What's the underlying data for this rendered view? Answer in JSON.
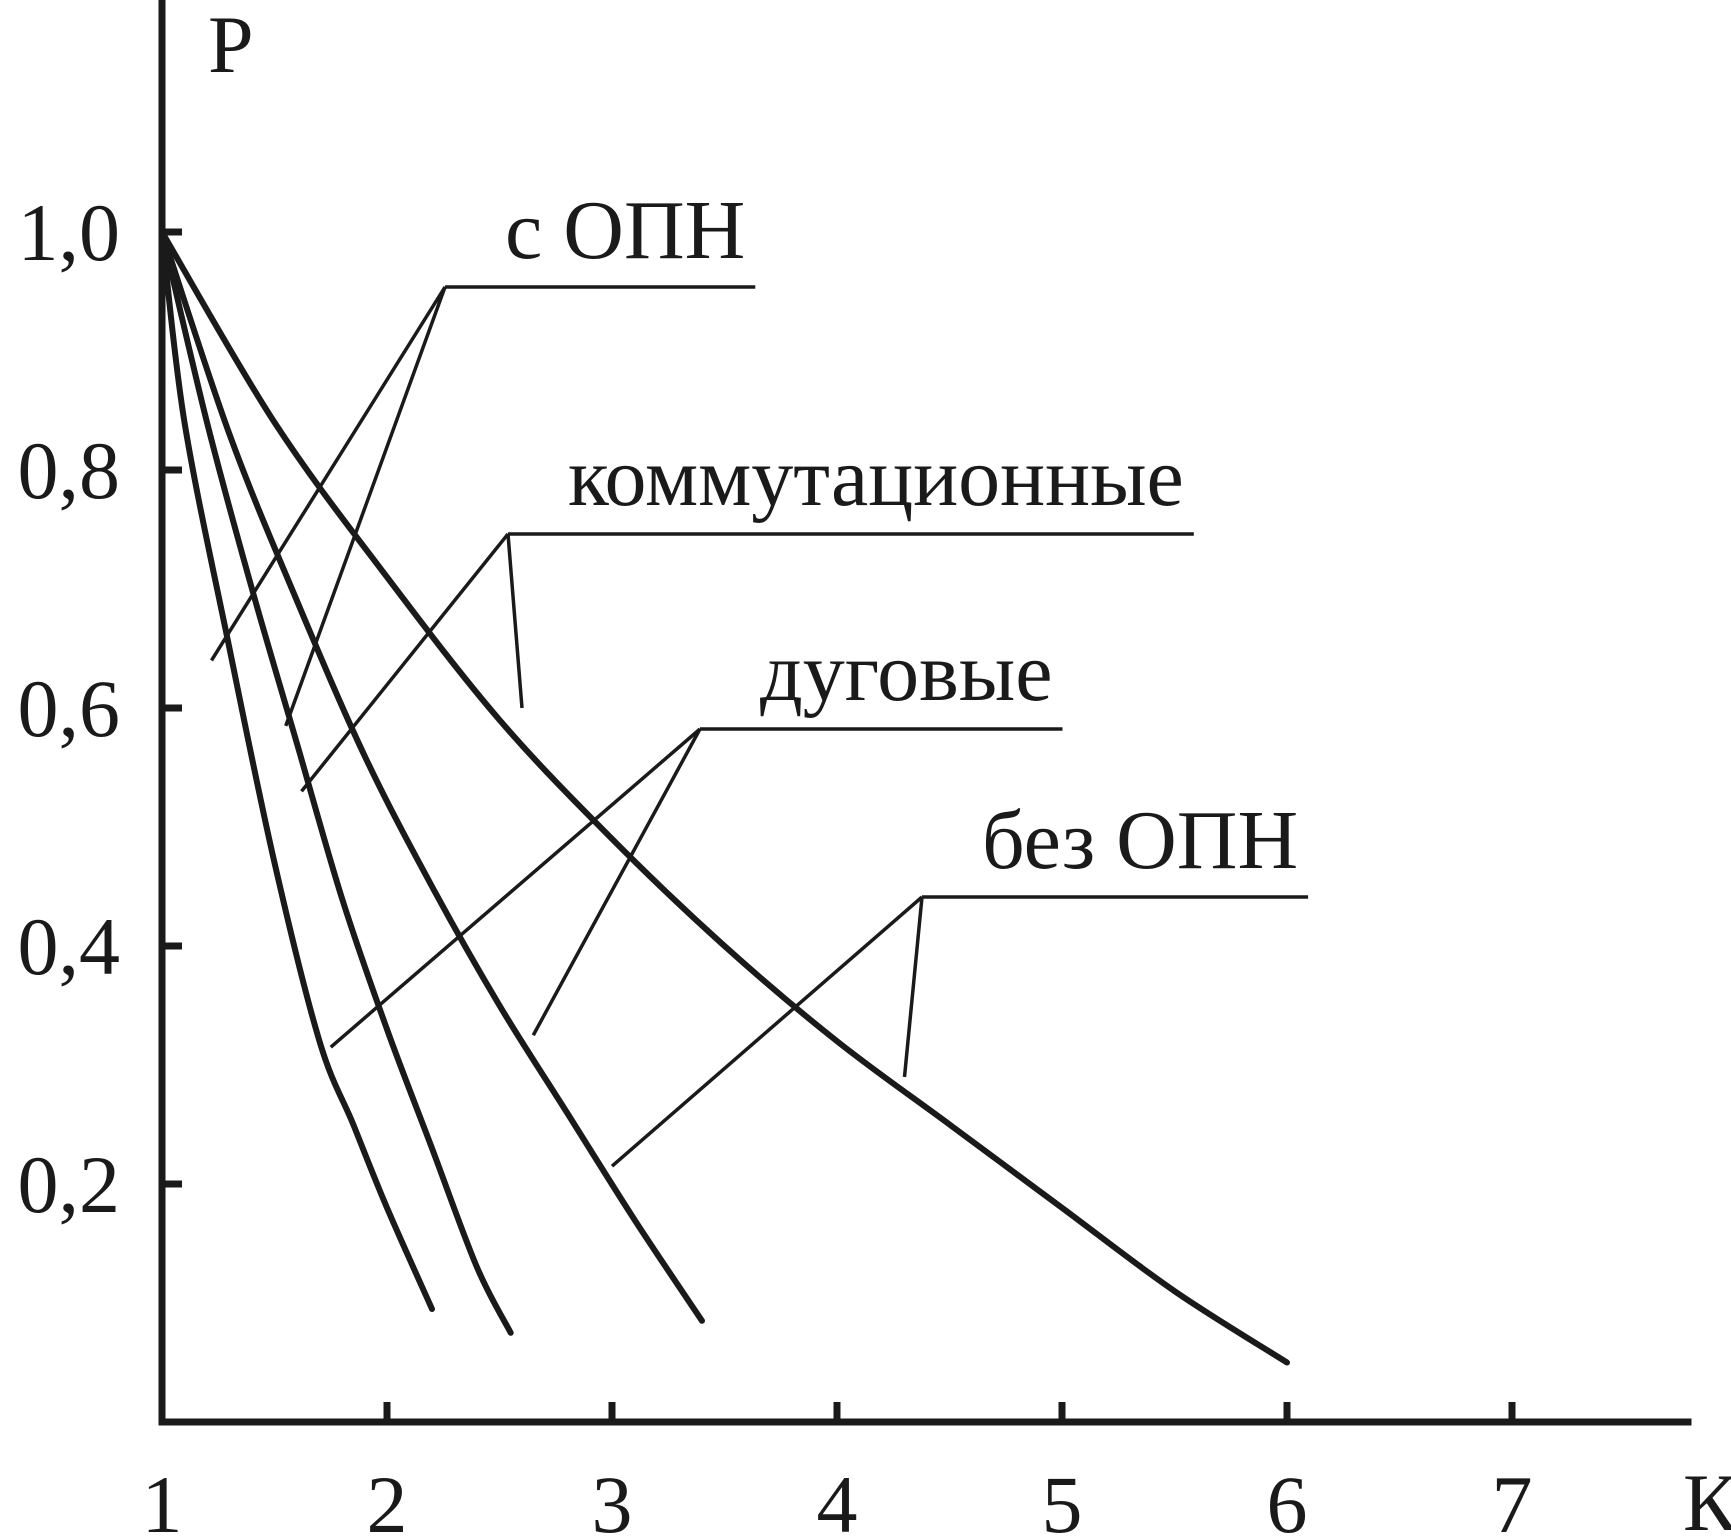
{
  "chart_data": {
    "type": "line",
    "title": "",
    "xlabel": "К",
    "ylabel": "Р",
    "xlim": [
      1,
      7.8
    ],
    "ylim": [
      0,
      1.25
    ],
    "x_ticks": [
      1,
      2,
      3,
      4,
      5,
      6,
      7
    ],
    "x_tick_labels": [
      "1",
      "2",
      "3",
      "4",
      "5",
      "6",
      "7"
    ],
    "y_ticks": [
      0.2,
      0.4,
      0.6,
      0.8,
      1.0
    ],
    "y_tick_labels": [
      "0,2",
      "0,4",
      "0,6",
      "0,8",
      "1,0"
    ],
    "grid": false,
    "series": [
      {
        "x": [
          1,
          1.1,
          1.3,
          1.5,
          1.7,
          1.85,
          2.0,
          2.2
        ],
        "y": [
          1.0,
          0.84,
          0.65,
          0.47,
          0.32,
          0.25,
          0.18,
          0.095
        ]
      },
      {
        "x": [
          1,
          1.2,
          1.4,
          1.6,
          1.8,
          2.0,
          2.2,
          2.4,
          2.55
        ],
        "y": [
          1.0,
          0.84,
          0.7,
          0.57,
          0.44,
          0.33,
          0.23,
          0.13,
          0.075
        ]
      },
      {
        "x": [
          1,
          1.3,
          1.6,
          1.9,
          2.2,
          2.5,
          2.8,
          3.1,
          3.4
        ],
        "y": [
          1.0,
          0.83,
          0.69,
          0.56,
          0.45,
          0.35,
          0.26,
          0.17,
          0.085
        ]
      },
      {
        "x": [
          1,
          1.5,
          2.0,
          2.5,
          3.0,
          3.5,
          4.0,
          4.5,
          5.0,
          5.5,
          6.0
        ],
        "y": [
          1.0,
          0.84,
          0.71,
          0.59,
          0.49,
          0.4,
          0.32,
          0.25,
          0.18,
          0.11,
          0.05
        ]
      }
    ],
    "annotations": [
      {
        "text": "с ОПН",
        "targets": [
          [
            1.22,
            0.64
          ],
          [
            1.55,
            0.585
          ]
        ]
      },
      {
        "text": "коммутационные",
        "targets": [
          [
            1.62,
            0.53
          ],
          [
            2.6,
            0.6
          ]
        ]
      },
      {
        "text": "дуговые",
        "targets": [
          [
            1.75,
            0.315
          ],
          [
            2.65,
            0.325
          ]
        ]
      },
      {
        "text": "без ОПН",
        "targets": [
          [
            3.0,
            0.215
          ],
          [
            4.3,
            0.29
          ]
        ]
      }
    ]
  },
  "colors": {
    "ink": "#1a1a1a",
    "background": "#ffffff"
  }
}
